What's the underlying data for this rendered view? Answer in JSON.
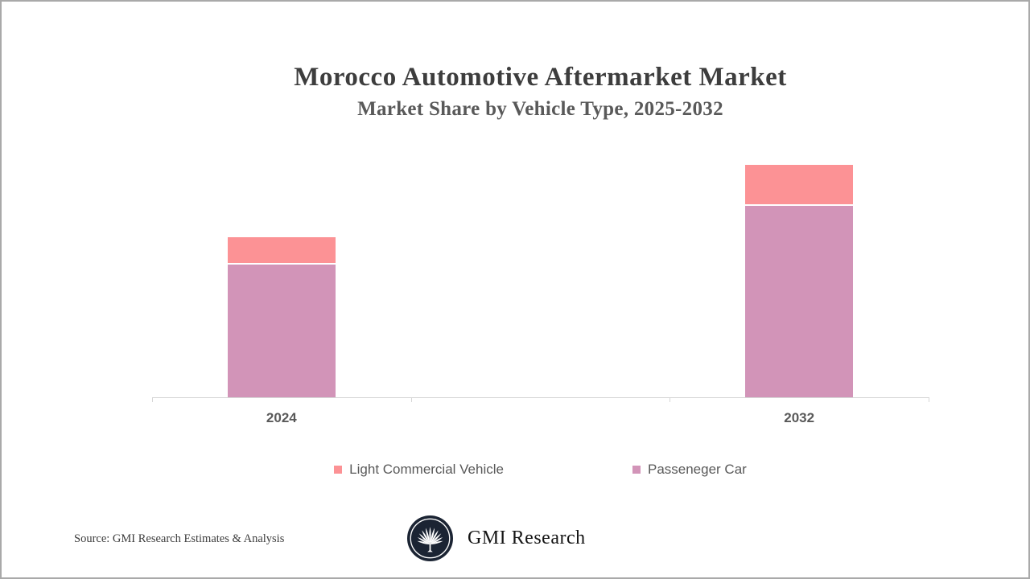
{
  "header": {
    "title": "Morocco Automotive Aftermarket Market",
    "subtitle": "Market Share by Vehicle Type, 2025-2032"
  },
  "chart_data": {
    "type": "bar",
    "stacked": true,
    "title": "Morocco Automotive Aftermarket Market",
    "subtitle": "Market Share by Vehicle Type, 2025-2032",
    "categories": [
      "2024",
      "2032"
    ],
    "series": [
      {
        "name": "Passeneger Car",
        "color": "#d294b8",
        "values": [
          57,
          82
        ]
      },
      {
        "name": "Light Commercial Vehicle",
        "color": "#fc9295",
        "values": [
          11,
          17
        ]
      }
    ],
    "legend": [
      {
        "label": "Light Commercial Vehicle",
        "color": "#fc9295"
      },
      {
        "label": "Passeneger Car",
        "color": "#d294b8"
      }
    ],
    "xlabel": "",
    "ylabel": "",
    "ylim": [
      0,
      110
    ],
    "grid": false,
    "y_axis_shown": false,
    "legend_position": "bottom",
    "axis_color": "#d6d6d6",
    "note": "values are relative units estimated from bar heights; no value axis is shown"
  },
  "footer": {
    "source": "Source: GMI Research Estimates & Analysis",
    "brand": "GMI Research"
  },
  "colors": {
    "light_commercial_vehicle": "#fc9295",
    "passeneger_car": "#d294b8",
    "title_text": "#3d3d3d",
    "secondary_text": "#595959",
    "axis": "#d6d6d6",
    "logo_navy": "#1b2433",
    "frame_border": "#a9a9a9"
  }
}
